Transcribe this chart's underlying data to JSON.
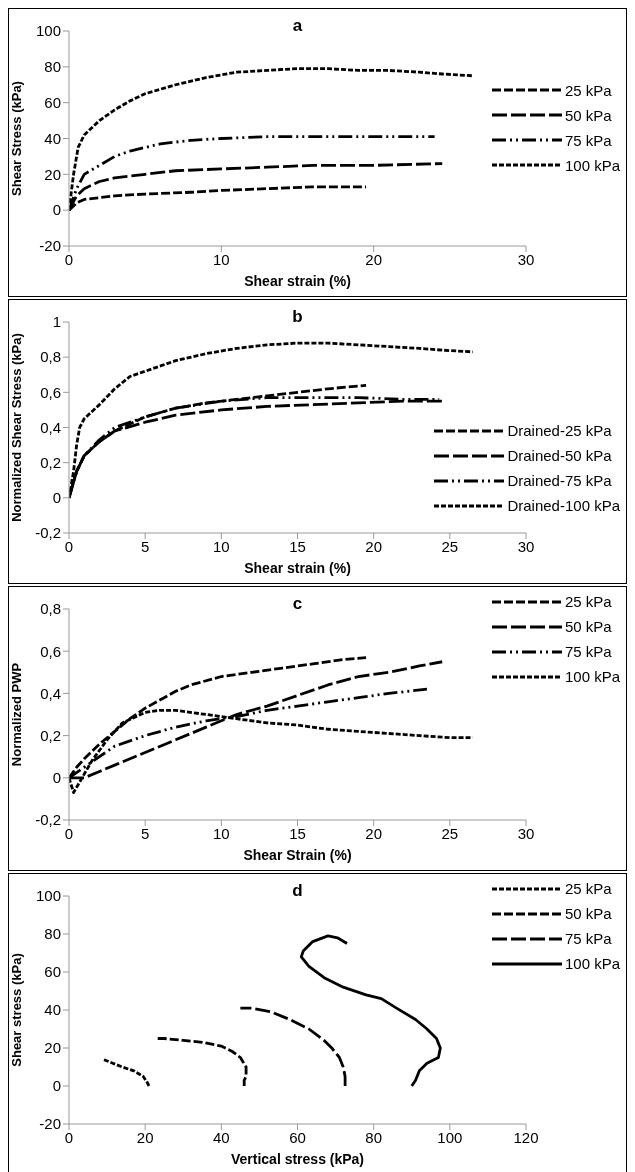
{
  "chart_data": [
    {
      "type": "line",
      "title": "a",
      "xlabel": "Shear strain  (%)",
      "ylabel": "Shear Stress  (kPa)",
      "xlim": [
        0,
        30
      ],
      "xticks": [
        0,
        10,
        20,
        30
      ],
      "ylim": [
        -20,
        100
      ],
      "yticks": [
        -20,
        0,
        20,
        40,
        60,
        80,
        100
      ],
      "legend": "right",
      "series": [
        {
          "name": "25 kPa",
          "color": "#000000",
          "line_style": "dashed",
          "x": [
            0,
            0.5,
            1,
            3,
            5,
            8,
            10,
            13,
            16,
            19.5
          ],
          "values": [
            0,
            4,
            6,
            8,
            9,
            10,
            11,
            12,
            13,
            13
          ]
        },
        {
          "name": "50 kPa",
          "color": "#000000",
          "line_style": "dashed",
          "x": [
            0,
            0.5,
            1,
            2,
            3,
            5,
            7,
            10,
            13,
            16,
            20,
            24.5
          ],
          "values": [
            0,
            8,
            12,
            16,
            18,
            20,
            22,
            23,
            24,
            25,
            25,
            26
          ]
        },
        {
          "name": "75 kPa",
          "color": "#000000",
          "line_style": "dashed",
          "x": [
            0,
            0.5,
            1,
            2,
            3,
            4,
            6,
            8,
            10,
            13,
            16,
            20,
            24
          ],
          "values": [
            0,
            12,
            20,
            25,
            30,
            33,
            37,
            39,
            40,
            41,
            41,
            41,
            41
          ]
        },
        {
          "name": "100 kPa",
          "color": "#000000",
          "line_style": "dotted",
          "x": [
            0,
            0.3,
            0.6,
            1,
            2,
            3,
            4,
            5,
            7,
            9,
            11,
            13,
            15,
            17,
            19,
            21,
            23,
            24.5,
            26.5
          ],
          "values": [
            0,
            20,
            35,
            42,
            50,
            56,
            61,
            65,
            70,
            74,
            77,
            78,
            79,
            79,
            78,
            78,
            77,
            76,
            75
          ]
        }
      ]
    },
    {
      "type": "line",
      "title": "b",
      "xlabel": "Shear strain  (%)",
      "ylabel": "Normalized Shear Stress (kPa)",
      "xlim": [
        0,
        30
      ],
      "xticks": [
        0,
        5,
        10,
        15,
        20,
        25,
        30
      ],
      "ylim": [
        -0.2,
        1
      ],
      "yticks": [
        {
          "value": -0.2,
          "label": "-0,2"
        },
        0,
        {
          "value": 0.2,
          "label": "0,2"
        },
        {
          "value": 0.4,
          "label": "0,4"
        },
        {
          "value": 0.6,
          "label": "0,6"
        },
        {
          "value": 0.8,
          "label": "0,8"
        },
        1
      ],
      "legend": "bottom right",
      "series": [
        {
          "name": "Drained-25 kPa",
          "color": "#000000",
          "line_style": "dashed",
          "x": [
            0,
            0.5,
            1,
            2,
            3,
            5,
            7,
            9,
            11,
            13,
            15,
            17,
            19.5
          ],
          "values": [
            0,
            0.15,
            0.24,
            0.32,
            0.38,
            0.46,
            0.51,
            0.54,
            0.56,
            0.58,
            0.6,
            0.62,
            0.64
          ]
        },
        {
          "name": "Drained-50 kPa",
          "color": "#000000",
          "line_style": "dashed",
          "x": [
            0,
            0.5,
            1,
            2,
            3,
            5,
            7,
            10,
            13,
            16,
            19,
            22,
            24.5
          ],
          "values": [
            0,
            0.15,
            0.24,
            0.32,
            0.38,
            0.43,
            0.47,
            0.5,
            0.52,
            0.53,
            0.54,
            0.55,
            0.55
          ]
        },
        {
          "name": "Drained-75 kPa",
          "color": "#000000",
          "line_style": "dashed",
          "x": [
            0,
            0.5,
            1,
            2,
            3,
            5,
            7,
            10,
            13,
            16,
            19,
            22,
            24.3
          ],
          "values": [
            0,
            0.15,
            0.24,
            0.33,
            0.4,
            0.46,
            0.51,
            0.55,
            0.57,
            0.57,
            0.57,
            0.56,
            0.56
          ]
        },
        {
          "name": "Drained-100 kPa",
          "color": "#000000",
          "line_style": "dotted",
          "x": [
            0,
            0.3,
            0.5,
            0.7,
            1,
            2,
            3,
            4,
            5,
            7,
            9,
            11,
            13,
            15,
            17,
            19,
            21,
            23,
            24.5,
            26.5
          ],
          "values": [
            0,
            0.15,
            0.3,
            0.4,
            0.45,
            0.53,
            0.62,
            0.69,
            0.72,
            0.78,
            0.82,
            0.85,
            0.87,
            0.88,
            0.88,
            0.87,
            0.86,
            0.85,
            0.84,
            0.83
          ]
        }
      ]
    },
    {
      "type": "line",
      "title": "c",
      "xlabel": "Shear Strain (%)",
      "ylabel": "Normalized PWP",
      "xlim": [
        0,
        30
      ],
      "xticks": [
        0,
        5,
        10,
        15,
        20,
        25,
        30
      ],
      "ylim": [
        -0.2,
        0.8
      ],
      "yticks": [
        {
          "value": -0.2,
          "label": "-0,2"
        },
        0,
        {
          "value": 0.2,
          "label": "0,2"
        },
        {
          "value": 0.4,
          "label": "0,4"
        },
        {
          "value": 0.6,
          "label": "0,6"
        },
        {
          "value": 0.8,
          "label": "0,8"
        }
      ],
      "legend": "top right",
      "series": [
        {
          "name": "25 kPa",
          "color": "#000000",
          "line_style": "dashed",
          "x": [
            0,
            0.5,
            1,
            2,
            3,
            4,
            5,
            6,
            7,
            8,
            10,
            12,
            14,
            16,
            18,
            19.5
          ],
          "values": [
            0,
            0.05,
            0.09,
            0.16,
            0.22,
            0.28,
            0.33,
            0.37,
            0.41,
            0.44,
            0.48,
            0.5,
            0.52,
            0.54,
            0.56,
            0.57
          ]
        },
        {
          "name": "50 kPa",
          "color": "#000000",
          "line_style": "dashed",
          "x": [
            0,
            1,
            2,
            3,
            5,
            7,
            9,
            11,
            13,
            15,
            17,
            19,
            21,
            23,
            24.5
          ],
          "values": [
            0,
            0,
            0.03,
            0.06,
            0.12,
            0.18,
            0.24,
            0.3,
            0.34,
            0.39,
            0.44,
            0.48,
            0.5,
            0.53,
            0.55
          ]
        },
        {
          "name": "75 kPa",
          "color": "#000000",
          "line_style": "dashed",
          "x": [
            0,
            1,
            2,
            3,
            5,
            7,
            9,
            11,
            13,
            15,
            17,
            19,
            21,
            23.5
          ],
          "values": [
            0,
            0.05,
            0.1,
            0.15,
            0.2,
            0.24,
            0.27,
            0.29,
            0.32,
            0.34,
            0.36,
            0.38,
            0.4,
            0.42
          ]
        },
        {
          "name": "100 kPa",
          "color": "#000000",
          "line_style": "dotted",
          "x": [
            0,
            0.3,
            0.7,
            1.5,
            2.5,
            3.5,
            5,
            6,
            7,
            9,
            11,
            13,
            15,
            17,
            19,
            21,
            23,
            25,
            26.5
          ],
          "values": [
            0,
            -0.07,
            -0.02,
            0.08,
            0.18,
            0.26,
            0.31,
            0.32,
            0.32,
            0.3,
            0.28,
            0.26,
            0.25,
            0.23,
            0.22,
            0.21,
            0.2,
            0.19,
            0.19
          ]
        }
      ]
    },
    {
      "type": "line",
      "title": "d",
      "xlabel": "Vertical stress (kPa)",
      "ylabel": "Shear stress (kPa)",
      "xlim": [
        0,
        120
      ],
      "xticks": [
        0,
        20,
        40,
        60,
        80,
        100,
        120
      ],
      "ylim": [
        -20,
        100
      ],
      "yticks": [
        -20,
        0,
        20,
        40,
        60,
        80,
        100
      ],
      "legend": "top right",
      "series": [
        {
          "name": "25 kPa",
          "color": "#000000",
          "line_style": "dotted",
          "x": [
            21,
            20.5,
            19.5,
            17,
            14,
            11.5,
            9
          ],
          "values": [
            0,
            2,
            5,
            8,
            10,
            12,
            14
          ]
        },
        {
          "name": "50 kPa",
          "color": "#000000",
          "line_style": "dashed",
          "x": [
            46,
            46,
            46.5,
            46.5,
            45,
            43,
            40,
            35,
            30,
            25,
            23
          ],
          "values": [
            0,
            3,
            5,
            10,
            15,
            18,
            21,
            23,
            24,
            25,
            25
          ]
        },
        {
          "name": "75 kPa",
          "color": "#000000",
          "line_style": "dashed",
          "x": [
            72.5,
            72.5,
            72,
            71,
            69,
            67,
            63,
            58,
            53,
            48,
            45
          ],
          "values": [
            0,
            5,
            10,
            15,
            20,
            24,
            30,
            35,
            39,
            41,
            41
          ]
        },
        {
          "name": "100 kPa",
          "color": "#000000",
          "line_style": "solid",
          "x": [
            90,
            91,
            92,
            94,
            97,
            97.5,
            96.5,
            94,
            91,
            86,
            82,
            78,
            72,
            67,
            63,
            61,
            61.5,
            64,
            68,
            70.5,
            73
          ],
          "values": [
            0,
            3,
            8,
            12,
            15,
            20,
            25,
            30,
            35,
            41,
            46,
            48,
            52,
            57,
            63,
            68,
            71,
            76,
            79,
            78,
            75
          ]
        }
      ]
    }
  ]
}
